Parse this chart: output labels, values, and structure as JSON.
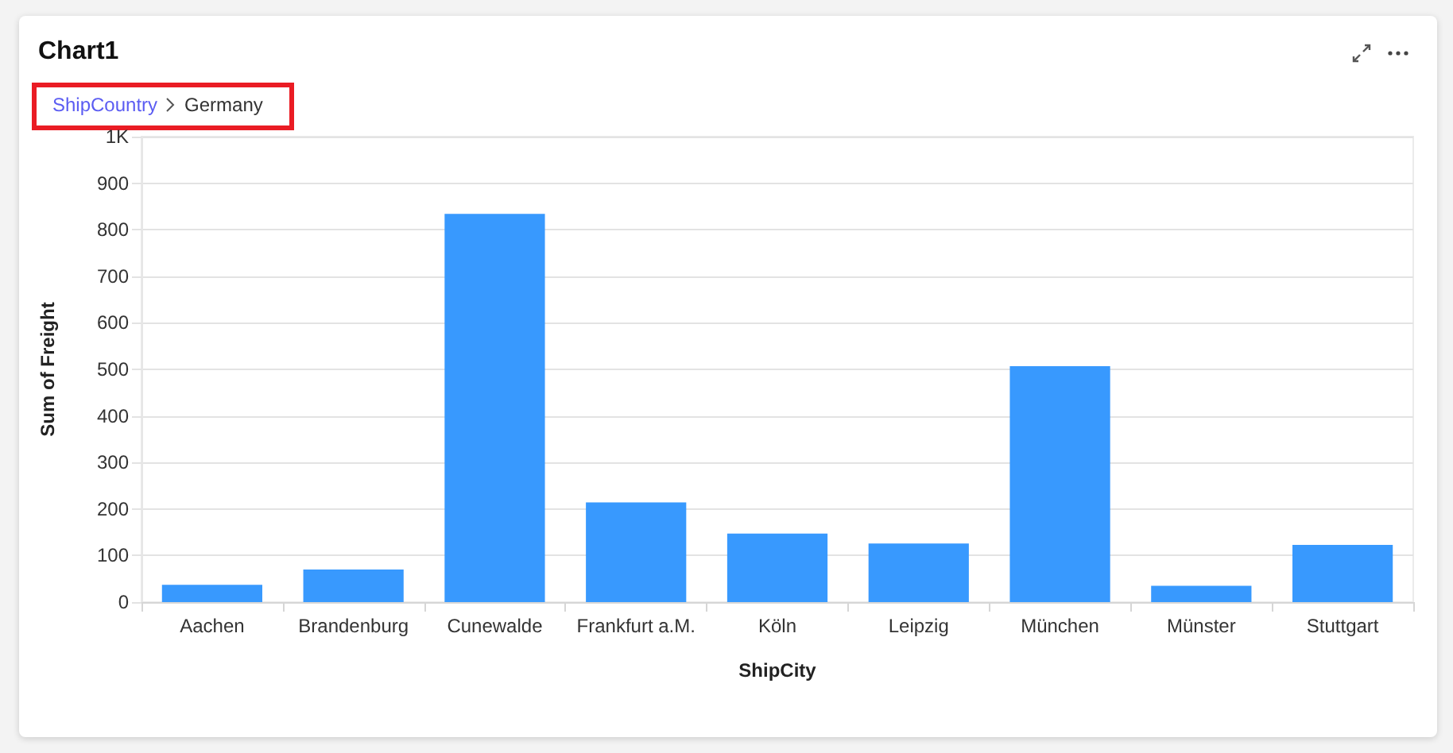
{
  "chart_data": {
    "type": "bar",
    "title": "Chart1",
    "annotations": [
      "ShipCountry",
      "Germany"
    ],
    "xlabel": "ShipCity",
    "ylabel": "Sum of Freight",
    "categories": [
      "Aachen",
      "Brandenburg",
      "Cunewalde",
      "Frankfurt a.M.",
      "Köln",
      "Leipzig",
      "München",
      "Münster",
      "Stuttgart"
    ],
    "values": [
      37,
      70,
      834,
      214,
      147,
      126,
      507,
      35,
      123
    ],
    "color": "#3899fe",
    "ylim": [
      0,
      1000
    ],
    "yticks": [
      0,
      100,
      200,
      300,
      400,
      500,
      600,
      700,
      800,
      900,
      {
        "value": 1000,
        "label": "1K"
      }
    ],
    "grid": "y"
  }
}
